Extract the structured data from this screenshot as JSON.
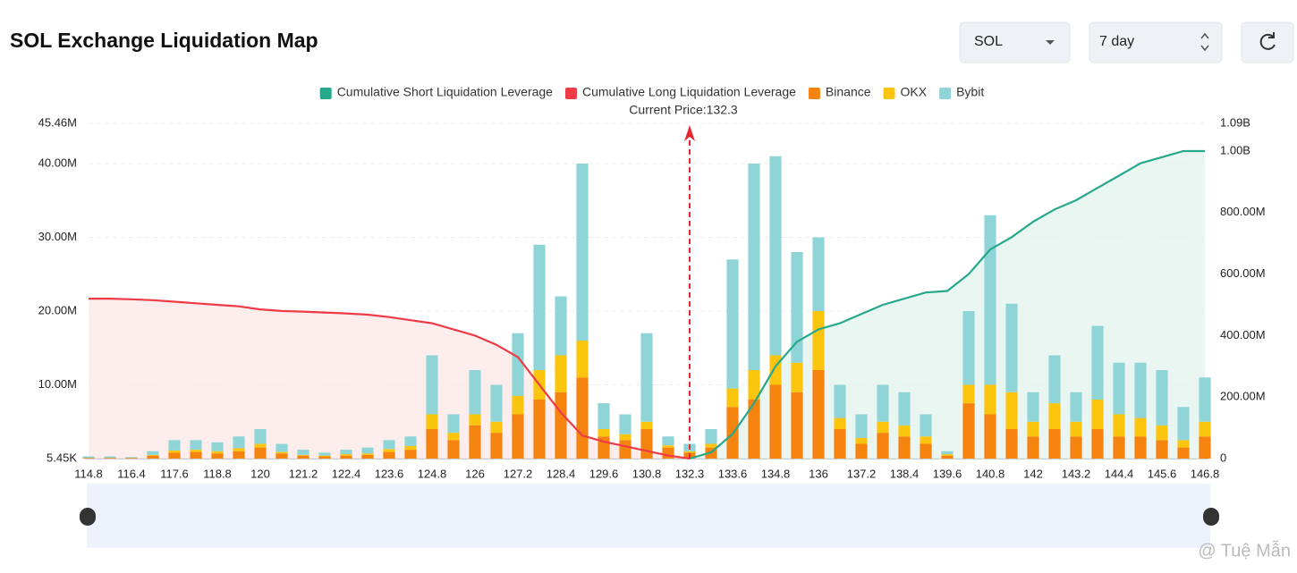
{
  "title": "SOL Exchange Liquidation Map",
  "controls": {
    "symbol": "SOL",
    "range": "7 day"
  },
  "watermark": "@ Tuệ Mẫn",
  "chart_data": {
    "type": "bar",
    "annotation": "Current Price:132.3",
    "current_price": 132.3,
    "categories": [
      "114.8",
      null,
      "116.4",
      null,
      "117.6",
      null,
      "118.8",
      null,
      "120",
      null,
      "121.2",
      null,
      "122.4",
      null,
      "123.6",
      null,
      "124.8",
      null,
      "126",
      null,
      "127.2",
      null,
      "128.4",
      null,
      "129.6",
      null,
      "130.8",
      null,
      "132.3",
      null,
      "133.6",
      null,
      "134.8",
      null,
      "136",
      null,
      "137.2",
      null,
      "138.4",
      null,
      "139.6",
      null,
      "140.8",
      null,
      "142",
      null,
      "143.2",
      null,
      "144.4",
      null,
      "145.6",
      null,
      "146.8"
    ],
    "series": [
      {
        "name": "Cumulative Short Liquidation Leverage",
        "type": "line",
        "axis": "y2",
        "color": "#26a88c",
        "fill": "#e3f4ee",
        "values": [
          null,
          null,
          null,
          null,
          null,
          null,
          null,
          null,
          null,
          null,
          null,
          null,
          null,
          null,
          null,
          null,
          null,
          null,
          null,
          null,
          null,
          null,
          null,
          null,
          null,
          null,
          null,
          null,
          0,
          20000000,
          80000000,
          180000000,
          300000000,
          380000000,
          420000000,
          440000000,
          470000000,
          500000000,
          520000000,
          540000000,
          545000000,
          600000000,
          680000000,
          720000000,
          770000000,
          810000000,
          840000000,
          880000000,
          920000000,
          960000000,
          980000000,
          1000000000,
          1000000000
        ]
      },
      {
        "name": "Cumulative Long Liquidation Leverage",
        "type": "line",
        "axis": "y2",
        "color": "#ee3b45",
        "fill": "#fde8e8",
        "values": [
          520000000,
          520000000,
          518000000,
          515000000,
          510000000,
          505000000,
          500000000,
          495000000,
          485000000,
          480000000,
          478000000,
          475000000,
          472000000,
          468000000,
          460000000,
          450000000,
          440000000,
          420000000,
          400000000,
          370000000,
          330000000,
          240000000,
          150000000,
          75000000,
          55000000,
          40000000,
          25000000,
          10000000,
          0,
          null,
          null,
          null,
          null,
          null,
          null,
          null,
          null,
          null,
          null,
          null,
          null,
          null,
          null,
          null,
          null,
          null,
          null,
          null,
          null,
          null,
          null,
          null,
          null
        ]
      },
      {
        "name": "Binance",
        "type": "bar",
        "color": "#f5830f",
        "values": [
          100000,
          100000,
          100000,
          400000,
          800000,
          900000,
          700000,
          1000000,
          1500000,
          700000,
          400000,
          300000,
          400000,
          500000,
          900000,
          1200000,
          4000000,
          2500000,
          4500000,
          3500000,
          6000000,
          8000000,
          9000000,
          11000000,
          3000000,
          2500000,
          4000000,
          1500000,
          800000,
          1500000,
          7000000,
          8000000,
          10000000,
          9000000,
          12000000,
          4000000,
          2000000,
          3500000,
          3000000,
          2000000,
          400000,
          7500000,
          6000000,
          4000000,
          3000000,
          4000000,
          3000000,
          4000000,
          3000000,
          3000000,
          2500000,
          1500000,
          3000000
        ]
      },
      {
        "name": "OKX",
        "type": "bar",
        "color": "#fbc40f",
        "values": [
          0,
          0,
          0,
          100000,
          300000,
          300000,
          300000,
          400000,
          500000,
          200000,
          100000,
          100000,
          200000,
          200000,
          400000,
          500000,
          2000000,
          1000000,
          1500000,
          1500000,
          2500000,
          4000000,
          5000000,
          5000000,
          1000000,
          800000,
          1000000,
          300000,
          200000,
          500000,
          2500000,
          4000000,
          4000000,
          4000000,
          8000000,
          1500000,
          800000,
          1500000,
          1500000,
          1000000,
          200000,
          2500000,
          4000000,
          5000000,
          2000000,
          3500000,
          2000000,
          4000000,
          3000000,
          2500000,
          2000000,
          1000000,
          2000000
        ]
      },
      {
        "name": "Bybit",
        "type": "bar",
        "color": "#8fd4d6",
        "values": [
          200000,
          200000,
          100000,
          500000,
          1400000,
          1300000,
          1200000,
          1600000,
          2000000,
          1100000,
          700000,
          400000,
          600000,
          800000,
          1200000,
          1300000,
          8000000,
          2500000,
          6000000,
          5000000,
          8500000,
          17000000,
          8000000,
          24000000,
          3500000,
          2700000,
          12000000,
          1200000,
          1000000,
          2000000,
          17500000,
          28000000,
          27000000,
          15000000,
          10000000,
          4500000,
          3200000,
          5000000,
          4500000,
          3000000,
          400000,
          10000000,
          23000000,
          12000000,
          4000000,
          6500000,
          4000000,
          10000000,
          7000000,
          7500000,
          7500000,
          4500000,
          6000000
        ]
      }
    ],
    "ylim": [
      5450,
      45460000
    ],
    "yticks": [
      {
        "value": 5450,
        "label": "5.45K"
      },
      {
        "value": 10000000,
        "label": "10.00M"
      },
      {
        "value": 20000000,
        "label": "20.00M"
      },
      {
        "value": 30000000,
        "label": "30.00M"
      },
      {
        "value": 40000000,
        "label": "40.00M"
      },
      {
        "value": 45460000,
        "label": "45.46M"
      }
    ],
    "y2lim": [
      0,
      1090000000
    ],
    "y2ticks": [
      0,
      {
        "value": 200000000,
        "label": "200.00M"
      },
      {
        "value": 400000000,
        "label": "400.00M"
      },
      {
        "value": 600000000,
        "label": "600.00M"
      },
      {
        "value": 800000000,
        "label": "800.00M"
      },
      {
        "value": 1000000000,
        "label": "1.00B"
      },
      {
        "value": 1090000000,
        "label": "1.09B"
      }
    ],
    "grid": true
  }
}
